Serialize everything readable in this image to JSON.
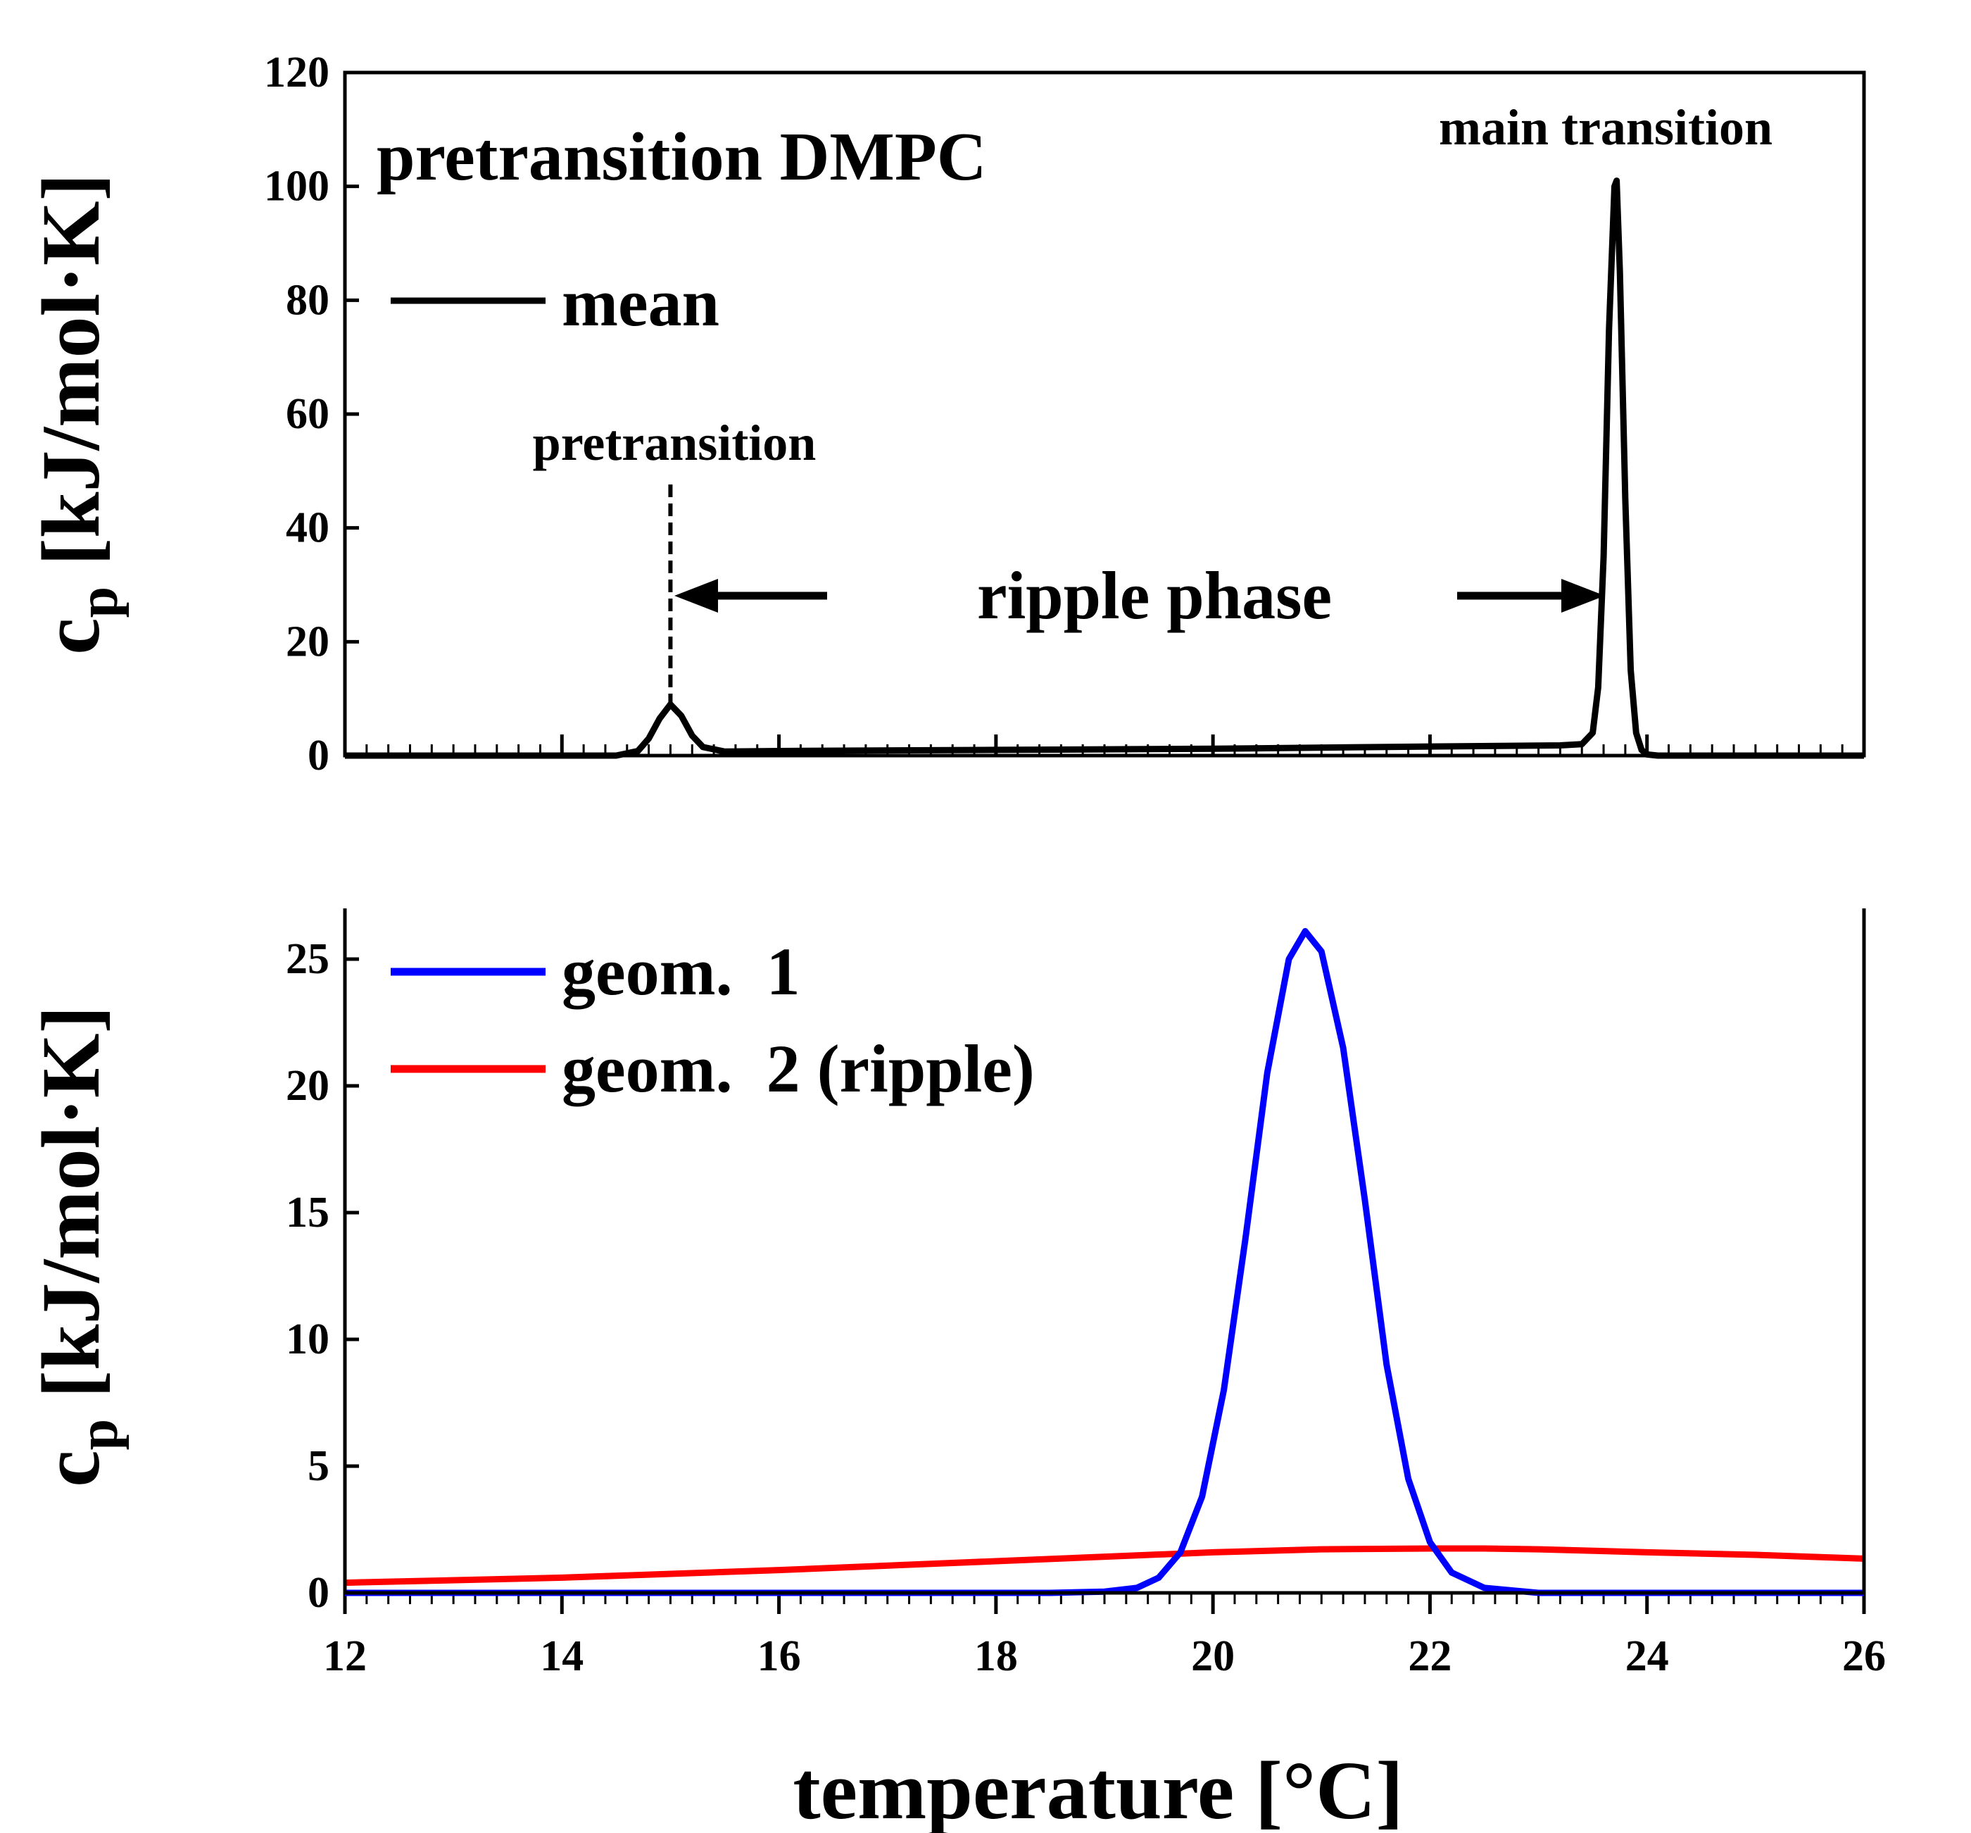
{
  "chart_data": [
    {
      "type": "line",
      "panel": "top",
      "title": "pretransition DMPC",
      "xlabel": "",
      "ylabel": "c_p [kJ/mol·K]",
      "xlim": [
        12,
        26
      ],
      "ylim": [
        0,
        120
      ],
      "yticks": [
        "0",
        "20",
        "40",
        "60",
        "80",
        "100",
        "120"
      ],
      "legend": [
        {
          "name": "mean",
          "color": "#000000"
        }
      ],
      "series": [
        {
          "name": "mean",
          "color": "#000000",
          "x": [
            12,
            14.5,
            14.7,
            14.8,
            14.9,
            15.0,
            15.1,
            15.2,
            15.3,
            15.5,
            16,
            18,
            20,
            22,
            23.2,
            23.4,
            23.5,
            23.55,
            23.6,
            23.65,
            23.7,
            23.72,
            23.75,
            23.8,
            23.85,
            23.9,
            23.95,
            24.0,
            24.1,
            26
          ],
          "y": [
            0,
            0,
            0.8,
            3,
            6.5,
            9,
            7,
            3.5,
            1.5,
            0.7,
            0.8,
            1,
            1.2,
            1.6,
            1.8,
            2,
            4,
            12,
            35,
            75,
            100,
            101,
            85,
            45,
            15,
            4,
            1,
            0.2,
            0,
            0
          ]
        }
      ],
      "annotations": {
        "pretransition": "pretransition",
        "main_transition": "main transition",
        "ripple_phase": "ripple phase",
        "pretransition_T": 15.0,
        "main_transition_T": 23.72
      }
    },
    {
      "type": "line",
      "panel": "bottom",
      "xlabel": "temperature [°C]",
      "ylabel": "c_p [kJ/mol·K]",
      "xlim": [
        12,
        26
      ],
      "ylim": [
        0,
        27
      ],
      "xticks": [
        "12",
        "14",
        "16",
        "18",
        "20",
        "22",
        "24",
        "26"
      ],
      "yticks": [
        "0",
        "5",
        "10",
        "15",
        "20",
        "25"
      ],
      "series": [
        {
          "name": "geom.  1",
          "color": "#0000ff",
          "x": [
            12,
            18.5,
            19.0,
            19.3,
            19.5,
            19.7,
            19.9,
            20.1,
            20.3,
            20.5,
            20.7,
            20.85,
            21.0,
            21.2,
            21.4,
            21.6,
            21.8,
            22.0,
            22.2,
            22.5,
            23.0,
            26
          ],
          "y": [
            0,
            0,
            0.05,
            0.2,
            0.6,
            1.6,
            3.8,
            8.0,
            14.0,
            20.5,
            25.0,
            26.1,
            25.3,
            21.5,
            15.5,
            9.0,
            4.5,
            2.0,
            0.8,
            0.2,
            0,
            0
          ]
        },
        {
          "name": "geom.  2 (ripple)",
          "color": "#ff0000",
          "x": [
            12,
            14,
            16,
            18,
            20,
            21,
            22,
            22.5,
            23,
            24,
            25,
            26
          ],
          "y": [
            0.4,
            0.6,
            0.9,
            1.25,
            1.6,
            1.72,
            1.75,
            1.75,
            1.72,
            1.6,
            1.5,
            1.35
          ]
        }
      ]
    }
  ]
}
